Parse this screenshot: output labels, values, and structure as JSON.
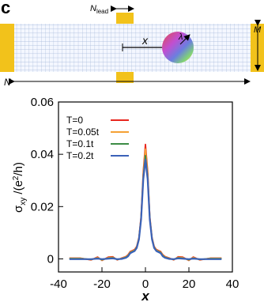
{
  "panel_label": "c",
  "schematic": {
    "n_lead": "N",
    "n_lead_sub": "lead",
    "x_label": "x",
    "lambda_label": "λ",
    "m_label": "M",
    "n_label": "N",
    "colors": {
      "lead": "#f2c21b",
      "grid_line": "#9fb3d6",
      "grid_bg": "#f4f7ff"
    }
  },
  "chart_data": {
    "type": "line",
    "xlabel": "x",
    "ylabel": "σxy /(e²/h)",
    "ylabel_parts": {
      "sigma": "σ",
      "sub": "xy",
      "rest": " /(e",
      "sup": "2",
      "end": "/h)"
    },
    "xlim": [
      -40,
      40
    ],
    "ylim": [
      -0.005,
      0.06
    ],
    "xticks": [
      -40,
      -20,
      0,
      20,
      40
    ],
    "xtick_labels": [
      "-40",
      "-20",
      "0",
      "20",
      "40"
    ],
    "yticks": [
      0,
      0.02,
      0.04,
      0.06
    ],
    "ytick_labels": [
      "0",
      "0.02",
      "0.04",
      "0.06"
    ],
    "grid": false,
    "legend_position": "top-left",
    "x": [
      -35,
      -30,
      -25,
      -22,
      -20,
      -17,
      -15,
      -13,
      -11,
      -9,
      -8,
      -7,
      -6,
      -5,
      -4,
      -3,
      -2,
      -1,
      0,
      1,
      2,
      3,
      4,
      5,
      6,
      7,
      8,
      9,
      11,
      13,
      15,
      17,
      20,
      22,
      25,
      30,
      35
    ],
    "series": [
      {
        "name": "T=0",
        "color": "#e8271f",
        "values": [
          0.0003,
          0.0003,
          -0.0004,
          0.0007,
          -0.0006,
          0.0007,
          0.0008,
          -0.0004,
          0.0003,
          0.0009,
          0.0016,
          0.0028,
          0.0032,
          0.0036,
          0.0048,
          0.0082,
          0.0162,
          0.0335,
          0.0438,
          0.0335,
          0.0162,
          0.0082,
          0.0048,
          0.0036,
          0.0032,
          0.0028,
          0.0016,
          0.0009,
          0.0003,
          -0.0004,
          0.0008,
          0.0007,
          -0.0006,
          0.0007,
          -0.0004,
          0.0003,
          0.0003
        ]
      },
      {
        "name": "T=0.05t",
        "color": "#f5a134",
        "values": [
          0.0002,
          0.0002,
          -0.0003,
          0.0005,
          -0.0005,
          0.0005,
          0.0006,
          -0.0003,
          0.0002,
          0.0008,
          0.0014,
          0.0026,
          0.003,
          0.0034,
          0.0046,
          0.008,
          0.0158,
          0.0325,
          0.042,
          0.0325,
          0.0158,
          0.008,
          0.0046,
          0.0034,
          0.003,
          0.0026,
          0.0014,
          0.0008,
          0.0002,
          -0.0003,
          0.0006,
          0.0005,
          -0.0005,
          0.0005,
          -0.0003,
          0.0002,
          0.0002
        ]
      },
      {
        "name": "T=0.1t",
        "color": "#3c8c45",
        "values": [
          0.0001,
          0.0001,
          -0.0002,
          0.0003,
          -0.0003,
          0.0003,
          0.0004,
          -0.0002,
          0.0001,
          0.0006,
          0.0012,
          0.0024,
          0.0028,
          0.0032,
          0.0044,
          0.0078,
          0.0154,
          0.0315,
          0.0395,
          0.0315,
          0.0154,
          0.0078,
          0.0044,
          0.0032,
          0.0028,
          0.0024,
          0.0012,
          0.0006,
          0.0001,
          -0.0002,
          0.0004,
          0.0003,
          -0.0003,
          0.0003,
          -0.0002,
          0.0001,
          0.0001
        ]
      },
      {
        "name": "T=0.2t",
        "color": "#3b62b8",
        "values": [
          -0.0001,
          -0.0001,
          -0.0001,
          0.0001,
          -0.0001,
          0.0001,
          0.0002,
          -0.0001,
          0.0,
          0.0004,
          0.001,
          0.0022,
          0.0026,
          0.003,
          0.0042,
          0.0075,
          0.015,
          0.0305,
          0.038,
          0.0305,
          0.015,
          0.0075,
          0.0042,
          0.003,
          0.0026,
          0.0022,
          0.001,
          0.0004,
          0.0,
          -0.0001,
          0.0002,
          0.0001,
          -0.0001,
          0.0001,
          -0.0001,
          -0.0001,
          -0.0001
        ]
      }
    ]
  }
}
